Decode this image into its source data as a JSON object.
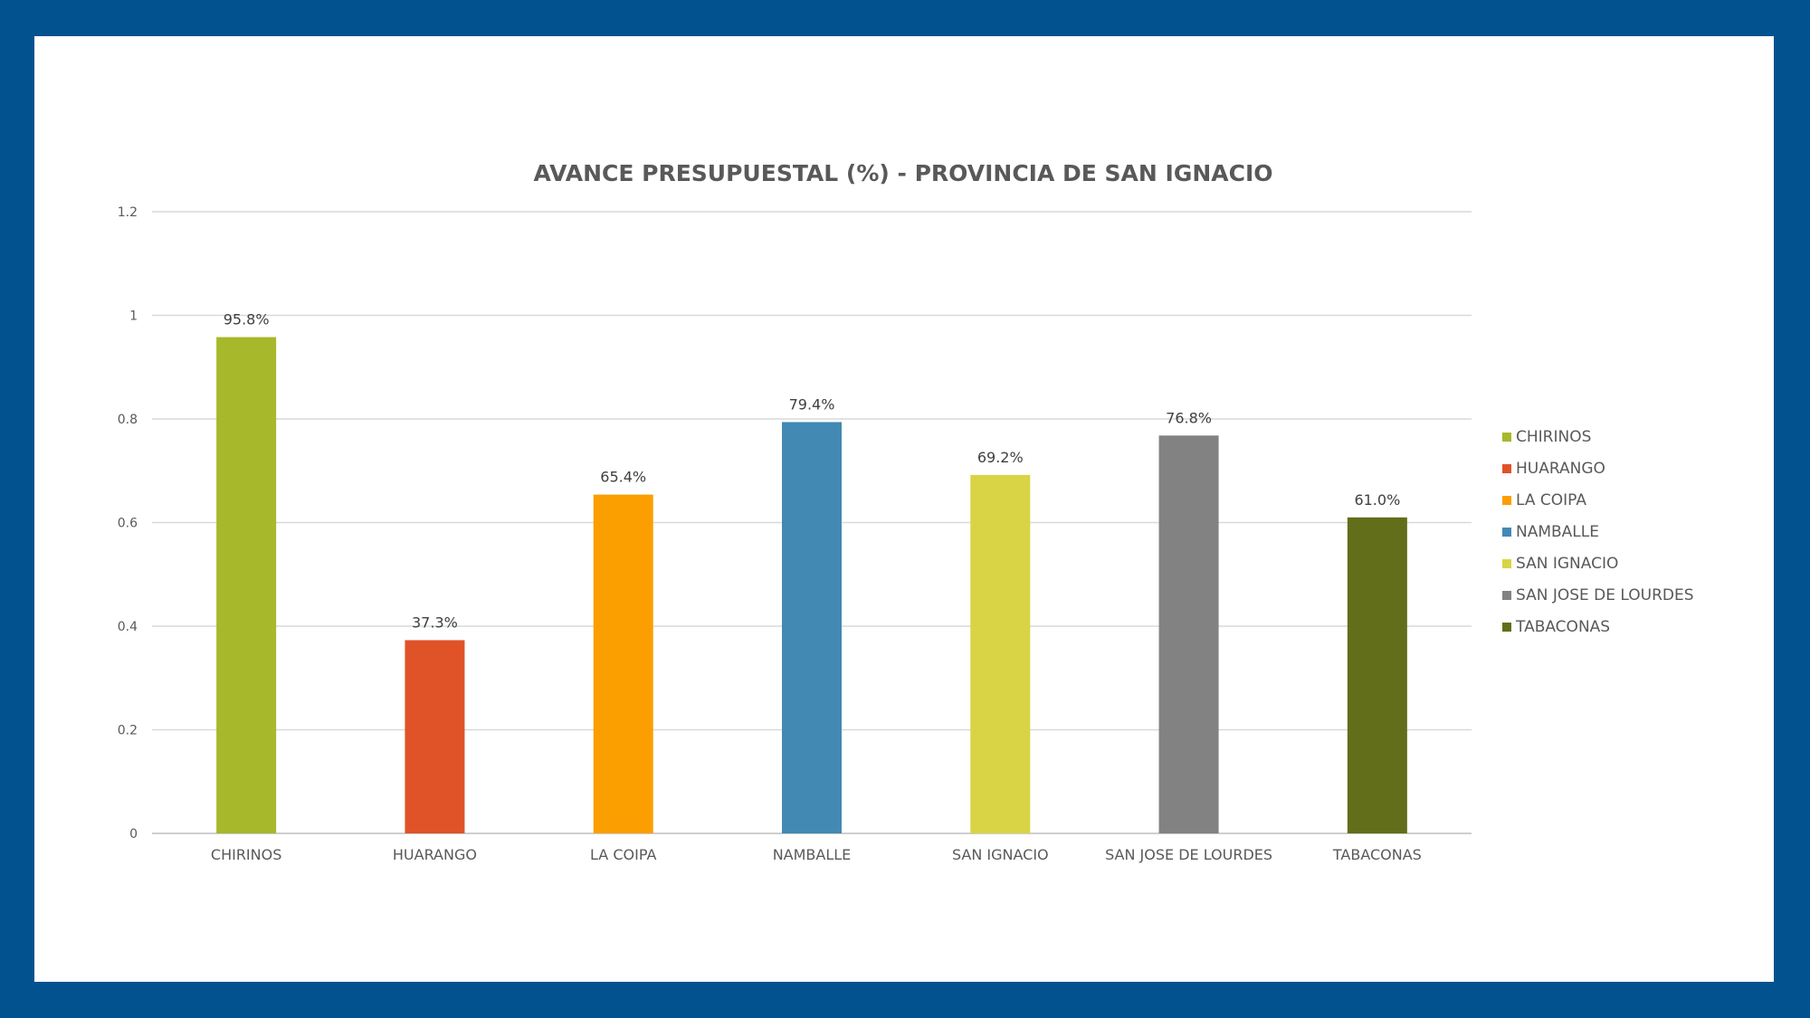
{
  "chart_data": {
    "type": "bar",
    "title": "AVANCE PRESUPUESTAL (%) - PROVINCIA DE SAN IGNACIO",
    "xlabel": "",
    "ylabel": "",
    "ylim": [
      0,
      1.2
    ],
    "yticks": [
      "0",
      "0.2",
      "0.4",
      "0.6",
      "0.8",
      "1",
      "1.2"
    ],
    "ytick_values": [
      0,
      0.2,
      0.4,
      0.6,
      0.8,
      1,
      1.2
    ],
    "grid": true,
    "legend_position": "right",
    "categories": [
      "CHIRINOS",
      "HUARANGO",
      "LA COIPA",
      "NAMBALLE",
      "SAN IGNACIO",
      "SAN JOSE DE LOURDES",
      "TABACONAS"
    ],
    "values": [
      0.958,
      0.373,
      0.654,
      0.794,
      0.692,
      0.768,
      0.61
    ],
    "labels": [
      "95.8%",
      "37.3%",
      "65.4%",
      "79.4%",
      "69.2%",
      "76.8%",
      "61.0%"
    ],
    "colors": [
      "#a7b82a",
      "#e05228",
      "#fb9e00",
      "#4289b3",
      "#d8d445",
      "#828282",
      "#636e1a"
    ]
  }
}
